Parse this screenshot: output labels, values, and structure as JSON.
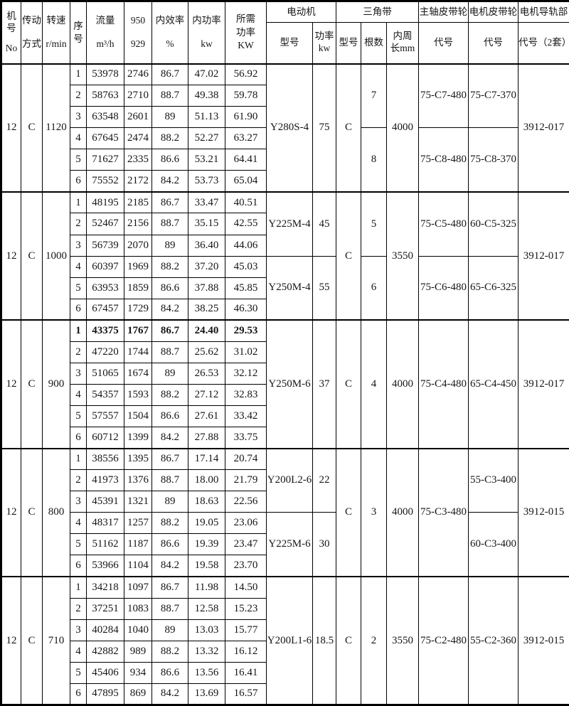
{
  "page": {
    "background": "#ffffff",
    "text_color": "#151515",
    "border_color": "#000000"
  },
  "table": {
    "header": {
      "machine_no_l1": "机号",
      "machine_no_l2": "No",
      "drive_l1": "传动",
      "drive_l2": "方式",
      "speed_l1": "转速",
      "speed_l2": "r/min",
      "seq_l1": "序",
      "seq_l2": "号",
      "flow_l1": "流量",
      "flow_l2": "m³/h",
      "v950_l1": "950",
      "v950_l2": "929",
      "eff_l1": "内效率",
      "eff_l2": "%",
      "kw_l1": "内功率",
      "kw_l2": "kw",
      "req_l1": "所需",
      "req_l2": "功率",
      "req_l3": "KW",
      "motor_group": "电动机",
      "motor_model": "型号",
      "motor_power_l1": "功率",
      "motor_power_l2": "kw",
      "belt_group": "三角带",
      "belt_model": "型号",
      "belt_count": "根数",
      "belt_length_l1": "内周",
      "belt_length_l2": "长mm",
      "main_pulley_group": "主轴皮带轮",
      "main_pulley_code": "代号",
      "motor_pulley_group": "电机皮带轮",
      "motor_pulley_code": "代号",
      "rail_group": "电机导轨部",
      "rail_code": "代号（2套）"
    },
    "blocks": [
      {
        "machine_no": "12",
        "drive": "C",
        "speed": "1120",
        "rows": [
          {
            "seq": "1",
            "flow": "53978",
            "v950": "2746",
            "eff": "86.7",
            "kw": "47.02",
            "req": "56.92"
          },
          {
            "seq": "2",
            "flow": "58763",
            "v950": "2710",
            "eff": "88.7",
            "kw": "49.38",
            "req": "59.78"
          },
          {
            "seq": "3",
            "flow": "63548",
            "v950": "2601",
            "eff": "89",
            "kw": "51.13",
            "req": "61.90"
          },
          {
            "seq": "4",
            "flow": "67645",
            "v950": "2474",
            "eff": "88.2",
            "kw": "52.27",
            "req": "63.27"
          },
          {
            "seq": "5",
            "flow": "71627",
            "v950": "2335",
            "eff": "86.6",
            "kw": "53.21",
            "req": "64.41"
          },
          {
            "seq": "6",
            "flow": "75552",
            "v950": "2172",
            "eff": "84.2",
            "kw": "53.73",
            "req": "65.04"
          }
        ],
        "motor": [
          {
            "model": "Y280S-4",
            "power": "75",
            "span": 6
          }
        ],
        "belt_model": [
          {
            "v": "C",
            "span": 6
          }
        ],
        "belt_count": [
          {
            "v": "7",
            "span": 3
          },
          {
            "v": "8",
            "span": 3
          }
        ],
        "belt_length": [
          {
            "v": "4000",
            "span": 6
          }
        ],
        "main_pulley": [
          {
            "v": "75-C7-480",
            "span": 3
          },
          {
            "v": "75-C8-480",
            "span": 3
          }
        ],
        "motor_pulley": [
          {
            "v": "75-C7-370",
            "span": 3
          },
          {
            "v": "75-C8-370",
            "span": 3
          }
        ],
        "rail": [
          {
            "v": "3912-017",
            "span": 6
          }
        ]
      },
      {
        "machine_no": "12",
        "drive": "C",
        "speed": "1000",
        "rows": [
          {
            "seq": "1",
            "flow": "48195",
            "v950": "2185",
            "eff": "86.7",
            "kw": "33.47",
            "req": "40.51"
          },
          {
            "seq": "2",
            "flow": "52467",
            "v950": "2156",
            "eff": "88.7",
            "kw": "35.15",
            "req": "42.55"
          },
          {
            "seq": "3",
            "flow": "56739",
            "v950": "2070",
            "eff": "89",
            "kw": "36.40",
            "req": "44.06"
          },
          {
            "seq": "4",
            "flow": "60397",
            "v950": "1969",
            "eff": "88.2",
            "kw": "37.20",
            "req": "45.03"
          },
          {
            "seq": "5",
            "flow": "63953",
            "v950": "1859",
            "eff": "86.6",
            "kw": "37.88",
            "req": "45.85"
          },
          {
            "seq": "6",
            "flow": "67457",
            "v950": "1729",
            "eff": "84.2",
            "kw": "38.25",
            "req": "46.30"
          }
        ],
        "motor": [
          {
            "model": "Y225M-4",
            "power": "45",
            "span": 3
          },
          {
            "model": "Y250M-4",
            "power": "55",
            "span": 3
          }
        ],
        "belt_model": [
          {
            "v": "C",
            "span": 6
          }
        ],
        "belt_count": [
          {
            "v": "5",
            "span": 3
          },
          {
            "v": "6",
            "span": 3
          }
        ],
        "belt_length": [
          {
            "v": "3550",
            "span": 6
          }
        ],
        "main_pulley": [
          {
            "v": "75-C5-480",
            "span": 3
          },
          {
            "v": "75-C6-480",
            "span": 3
          }
        ],
        "motor_pulley": [
          {
            "v": "60-C5-325",
            "span": 3
          },
          {
            "v": "65-C6-325",
            "span": 3
          }
        ],
        "rail": [
          {
            "v": "3912-017",
            "span": 6
          }
        ]
      },
      {
        "machine_no": "12",
        "drive": "C",
        "speed": "900",
        "rows": [
          {
            "seq": "1",
            "flow": "43375",
            "v950": "1767",
            "eff": "86.7",
            "kw": "24.40",
            "req": "29.53",
            "bold": true
          },
          {
            "seq": "2",
            "flow": "47220",
            "v950": "1744",
            "eff": "88.7",
            "kw": "25.62",
            "req": "31.02"
          },
          {
            "seq": "3",
            "flow": "51065",
            "v950": "1674",
            "eff": "89",
            "kw": "26.53",
            "req": "32.12"
          },
          {
            "seq": "4",
            "flow": "54357",
            "v950": "1593",
            "eff": "88.2",
            "kw": "27.12",
            "req": "32.83"
          },
          {
            "seq": "5",
            "flow": "57557",
            "v950": "1504",
            "eff": "86.6",
            "kw": "27.61",
            "req": "33.42"
          },
          {
            "seq": "6",
            "flow": "60712",
            "v950": "1399",
            "eff": "84.2",
            "kw": "27.88",
            "req": "33.75"
          }
        ],
        "motor": [
          {
            "model": "Y250M-6",
            "power": "37",
            "span": 6
          }
        ],
        "belt_model": [
          {
            "v": "C",
            "span": 6
          }
        ],
        "belt_count": [
          {
            "v": "4",
            "span": 6
          }
        ],
        "belt_length": [
          {
            "v": "4000",
            "span": 6
          }
        ],
        "main_pulley": [
          {
            "v": "75-C4-480",
            "span": 6
          }
        ],
        "motor_pulley": [
          {
            "v": "65-C4-450",
            "span": 6
          }
        ],
        "rail": [
          {
            "v": "3912-017",
            "span": 6
          }
        ]
      },
      {
        "machine_no": "12",
        "drive": "C",
        "speed": "800",
        "rows": [
          {
            "seq": "1",
            "flow": "38556",
            "v950": "1395",
            "eff": "86.7",
            "kw": "17.14",
            "req": "20.74"
          },
          {
            "seq": "2",
            "flow": "41973",
            "v950": "1376",
            "eff": "88.7",
            "kw": "18.00",
            "req": "21.79"
          },
          {
            "seq": "3",
            "flow": "45391",
            "v950": "1321",
            "eff": "89",
            "kw": "18.63",
            "req": "22.56"
          },
          {
            "seq": "4",
            "flow": "48317",
            "v950": "1257",
            "eff": "88.2",
            "kw": "19.05",
            "req": "23.06"
          },
          {
            "seq": "5",
            "flow": "51162",
            "v950": "1187",
            "eff": "86.6",
            "kw": "19.39",
            "req": "23.47"
          },
          {
            "seq": "6",
            "flow": "53966",
            "v950": "1104",
            "eff": "84.2",
            "kw": "19.58",
            "req": "23.70"
          }
        ],
        "motor": [
          {
            "model": "Y200L2-6",
            "power": "22",
            "span": 3
          },
          {
            "model": "Y225M-6",
            "power": "30",
            "span": 3
          }
        ],
        "belt_model": [
          {
            "v": "C",
            "span": 6
          }
        ],
        "belt_count": [
          {
            "v": "3",
            "span": 6
          }
        ],
        "belt_length": [
          {
            "v": "4000",
            "span": 6
          }
        ],
        "main_pulley": [
          {
            "v": "75-C3-480",
            "span": 6
          }
        ],
        "motor_pulley": [
          {
            "v": "55-C3-400",
            "span": 3
          },
          {
            "v": "60-C3-400",
            "span": 3
          }
        ],
        "rail": [
          {
            "v": "3912-015",
            "span": 6
          }
        ]
      },
      {
        "machine_no": "12",
        "drive": "C",
        "speed": "710",
        "rows": [
          {
            "seq": "1",
            "flow": "34218",
            "v950": "1097",
            "eff": "86.7",
            "kw": "11.98",
            "req": "14.50"
          },
          {
            "seq": "2",
            "flow": "37251",
            "v950": "1083",
            "eff": "88.7",
            "kw": "12.58",
            "req": "15.23"
          },
          {
            "seq": "3",
            "flow": "40284",
            "v950": "1040",
            "eff": "89",
            "kw": "13.03",
            "req": "15.77"
          },
          {
            "seq": "4",
            "flow": "42882",
            "v950": "989",
            "eff": "88.2",
            "kw": "13.32",
            "req": "16.12"
          },
          {
            "seq": "5",
            "flow": "45406",
            "v950": "934",
            "eff": "86.6",
            "kw": "13.56",
            "req": "16.41"
          },
          {
            "seq": "6",
            "flow": "47895",
            "v950": "869",
            "eff": "84.2",
            "kw": "13.69",
            "req": "16.57"
          }
        ],
        "motor": [
          {
            "model": "Y200L1-6",
            "power": "18.5",
            "span": 6
          }
        ],
        "belt_model": [
          {
            "v": "C",
            "span": 6
          }
        ],
        "belt_count": [
          {
            "v": "2",
            "span": 6
          }
        ],
        "belt_length": [
          {
            "v": "3550",
            "span": 6
          }
        ],
        "main_pulley": [
          {
            "v": "75-C2-480",
            "span": 6
          }
        ],
        "motor_pulley": [
          {
            "v": "55-C2-360",
            "span": 6
          }
        ],
        "rail": [
          {
            "v": "3912-015",
            "span": 6
          }
        ]
      }
    ]
  }
}
